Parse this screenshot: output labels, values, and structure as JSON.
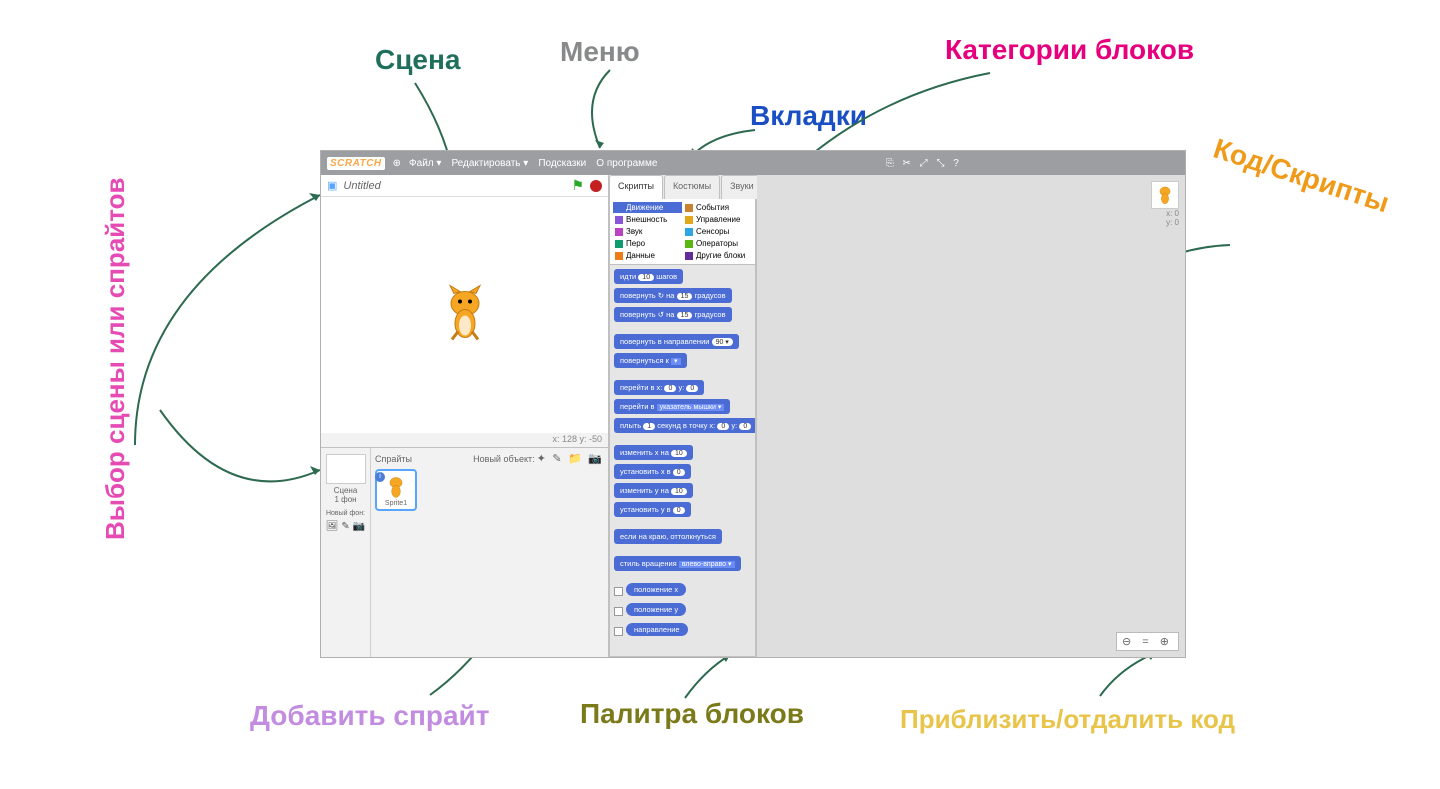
{
  "annotations": {
    "menu": {
      "text": "Меню",
      "color": "#88898a",
      "fontsize": 28
    },
    "scene": {
      "text": "Сцена",
      "color": "#1f6f5c",
      "fontsize": 28
    },
    "categories": {
      "text": "Категории блоков",
      "color": "#e6007e",
      "fontsize": 28
    },
    "tabs": {
      "text": "Вкладки",
      "color": "#1a4fc4",
      "fontsize": 28
    },
    "code": {
      "text": "Код/Скрипты",
      "color": "#f09a1a",
      "fontsize": 28
    },
    "sidebar": {
      "text": "Выбор сцены или спрайтов",
      "color": "#e64ab3",
      "fontsize": 26
    },
    "addsprite": {
      "text": "Добавить спрайт",
      "color": "#c28de0",
      "fontsize": 28
    },
    "palette": {
      "text": "Палитра блоков",
      "color": "#7a7a1a",
      "fontsize": 28
    },
    "zoom": {
      "text": "Приблизить/отдалить код",
      "color": "#e8c54a",
      "fontsize": 26
    }
  },
  "arrow_color": "#2d6a4f",
  "menubar": {
    "logo": "SCRATCH",
    "items": [
      "Файл ▾",
      "Редактировать ▾",
      "Подсказки",
      "О программе"
    ],
    "globe": "⊕"
  },
  "stage": {
    "project_title": "Untitled",
    "xy_readout": "x: 128   y: -50"
  },
  "sprite_pane": {
    "stage_label": "Сцена",
    "stage_sub": "1 фон",
    "new_backdrop": "Новый фон:",
    "sprites_label": "Спрайты",
    "new_sprite": "Новый объект:",
    "sprite1": "Sprite1"
  },
  "tabs": {
    "scripts": "Скрипты",
    "costumes": "Костюмы",
    "sounds": "Звуки"
  },
  "categories": [
    {
      "label": "Движение",
      "color": "#4a6cd4",
      "selected": true
    },
    {
      "label": "События",
      "color": "#c88330"
    },
    {
      "label": "Внешность",
      "color": "#8a55d7"
    },
    {
      "label": "Управление",
      "color": "#e1a91a"
    },
    {
      "label": "Звук",
      "color": "#bb42c3"
    },
    {
      "label": "Сенсоры",
      "color": "#2ca5e2"
    },
    {
      "label": "Перо",
      "color": "#0e9a6c"
    },
    {
      "label": "Операторы",
      "color": "#5cb712"
    },
    {
      "label": "Данные",
      "color": "#ee7d16"
    },
    {
      "label": "Другие блоки",
      "color": "#632d99"
    }
  ],
  "blocks": {
    "move": {
      "pre": "идти",
      "n": "10",
      "post": "шагов"
    },
    "turn_cw": {
      "pre": "повернуть ↻ на",
      "n": "15",
      "post": "градусов"
    },
    "turn_ccw": {
      "pre": "повернуть ↺ на",
      "n": "15",
      "post": "градусов"
    },
    "point_dir": {
      "pre": "повернуть в направлении",
      "n": "90 ▾"
    },
    "point_to": {
      "pre": "повернуться к",
      "dd": "▾"
    },
    "goto_xy": {
      "pre": "перейти в x:",
      "a": "0",
      "mid": "y:",
      "b": "0"
    },
    "goto": {
      "pre": "перейти в",
      "dd": "указатель мышки ▾"
    },
    "glide": {
      "pre": "плыть",
      "a": "1",
      "mid": "секунд в точку x:",
      "b": "0",
      "mid2": "y:",
      "c": "0"
    },
    "change_x": {
      "pre": "изменить x на",
      "n": "10"
    },
    "set_x": {
      "pre": "установить x в",
      "n": "0"
    },
    "change_y": {
      "pre": "изменить y на",
      "n": "10"
    },
    "set_y": {
      "pre": "установить y в",
      "n": "0"
    },
    "bounce": "если на краю, оттолкнуться",
    "rot_style": {
      "pre": "стиль вращения",
      "dd": "влево-вправо ▾"
    },
    "rep_x": "положение x",
    "rep_y": "положение y",
    "rep_dir": "направление"
  },
  "script_xy": {
    "x": "x: 0",
    "y": "y: 0"
  },
  "zoom_btns": "⊖ = ⊕"
}
